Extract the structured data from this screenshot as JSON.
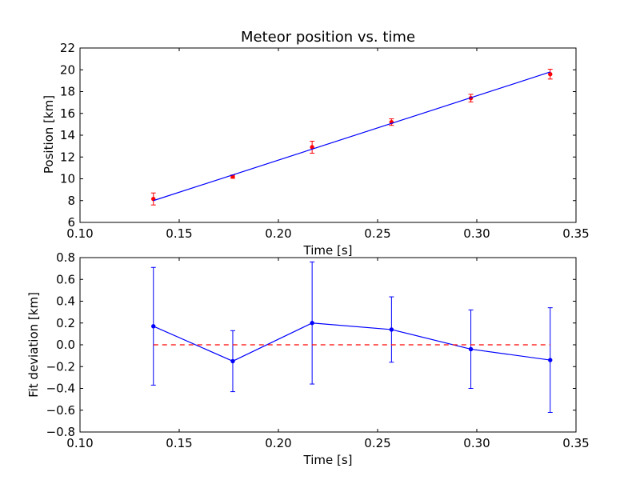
{
  "chart_data": [
    {
      "type": "scatter",
      "title": "Meteor position vs. time",
      "xlabel": "Time [s]",
      "ylabel": "Position [km]",
      "xlim": [
        0.1,
        0.35
      ],
      "ylim": [
        6,
        22
      ],
      "xticks": [
        "0.10",
        "0.15",
        "0.20",
        "0.25",
        "0.30",
        "0.35"
      ],
      "yticks": [
        "6",
        "8",
        "10",
        "12",
        "14",
        "16",
        "18",
        "20",
        "22"
      ],
      "grid": false,
      "series": [
        {
          "kind": "errorbar-points",
          "color": "#ff0000",
          "x": [
            0.137,
            0.177,
            0.217,
            0.257,
            0.297,
            0.337
          ],
          "y": [
            8.15,
            10.2,
            12.9,
            15.2,
            17.4,
            19.6
          ],
          "yerr": [
            0.55,
            0.15,
            0.55,
            0.3,
            0.35,
            0.45
          ]
        },
        {
          "kind": "fit-line",
          "color": "#0000ff",
          "x": [
            0.137,
            0.337
          ],
          "y": [
            8.0,
            19.8
          ]
        }
      ]
    },
    {
      "type": "line",
      "title": "",
      "xlabel": "Time [s]",
      "ylabel": "Fit deviation [km]",
      "xlim": [
        0.1,
        0.35
      ],
      "ylim": [
        -0.8,
        0.8
      ],
      "xticks": [
        "0.10",
        "0.15",
        "0.20",
        "0.25",
        "0.30",
        "0.35"
      ],
      "yticks": [
        "−0.8",
        "−0.6",
        "−0.4",
        "−0.2",
        "0.0",
        "0.2",
        "0.4",
        "0.6",
        "0.8"
      ],
      "grid": false,
      "series": [
        {
          "kind": "errorbar-line",
          "color": "#0000ff",
          "x": [
            0.137,
            0.177,
            0.217,
            0.257,
            0.297,
            0.337
          ],
          "y": [
            0.17,
            -0.15,
            0.2,
            0.14,
            -0.04,
            -0.14
          ],
          "yerr": [
            0.54,
            0.28,
            0.56,
            0.3,
            0.36,
            0.48
          ]
        },
        {
          "kind": "reference-line",
          "color": "#ff0000",
          "dashed": true,
          "x": [
            0.137,
            0.337
          ],
          "y": [
            0.0,
            0.0
          ]
        }
      ]
    }
  ]
}
